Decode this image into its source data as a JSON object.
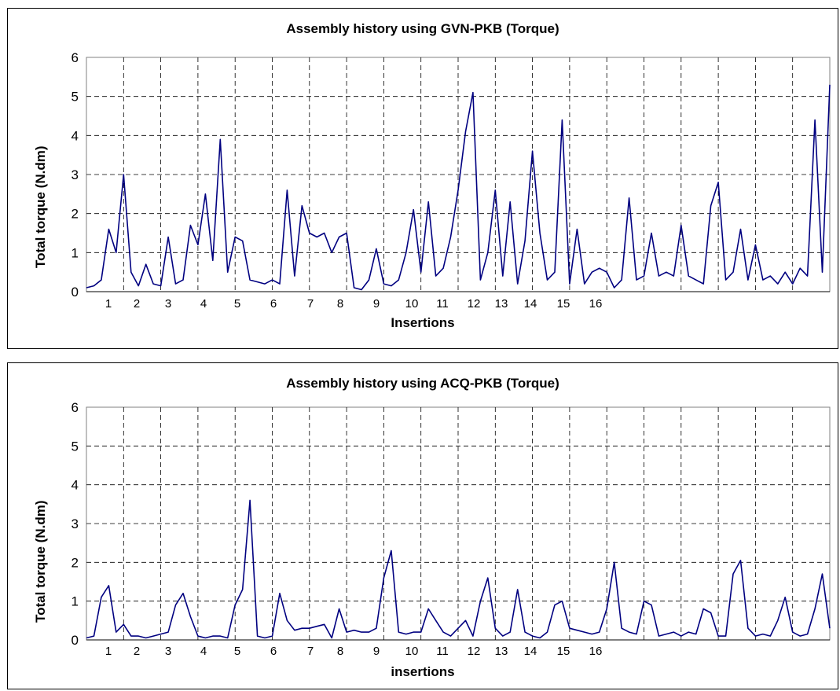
{
  "chart_data": [
    {
      "type": "line",
      "title": "Assembly history using GVN-PKB (Torque)",
      "xlabel": "Insertions",
      "ylabel": "Total torque (N.dm)",
      "ylim": [
        0,
        6
      ],
      "yticks": [
        "0",
        "1",
        "2",
        "3",
        "4",
        "5",
        "6"
      ],
      "grid": true,
      "line_color": "#000080",
      "insertion_labels": [
        "1",
        "2",
        "3",
        "4",
        "5",
        "6",
        "7",
        "8",
        "9",
        "10",
        "11",
        "12",
        "13",
        "14",
        "15",
        "16"
      ],
      "series": [
        {
          "x": [
            0,
            1,
            2,
            3,
            4,
            5,
            6,
            7,
            8,
            9,
            10,
            11,
            12,
            13,
            14,
            15,
            16,
            17,
            18,
            19,
            20,
            21,
            22,
            23,
            24,
            25,
            26,
            27,
            28,
            29,
            30,
            31,
            32,
            33,
            34,
            35,
            36,
            37,
            38,
            39,
            40,
            41,
            42,
            43,
            44,
            45,
            46,
            47,
            48,
            49,
            50,
            51,
            52,
            53,
            54,
            55,
            56,
            57,
            58,
            59,
            60,
            61,
            62,
            63,
            64,
            65,
            66,
            67,
            68,
            69,
            70,
            71,
            72,
            73,
            74,
            75,
            76,
            77,
            78,
            79,
            80,
            81,
            82,
            83,
            84,
            85,
            86,
            87,
            88,
            89,
            90,
            91,
            92,
            93,
            94,
            95,
            96,
            97,
            98,
            99,
            100
          ],
          "y": [
            0.1,
            0.15,
            0.3,
            1.6,
            1.0,
            3.0,
            0.5,
            0.15,
            0.7,
            0.2,
            0.15,
            1.4,
            0.2,
            0.3,
            1.7,
            1.2,
            2.5,
            0.8,
            3.9,
            0.5,
            1.4,
            1.3,
            0.3,
            0.25,
            0.2,
            0.3,
            0.2,
            2.6,
            0.4,
            2.2,
            1.5,
            1.4,
            1.5,
            1.0,
            1.4,
            1.5,
            0.1,
            0.05,
            0.3,
            1.1,
            0.2,
            0.15,
            0.3,
            1.0,
            2.1,
            0.5,
            2.3,
            0.4,
            0.6,
            1.4,
            2.6,
            4.1,
            5.1,
            0.3,
            1.0,
            2.6,
            0.4,
            2.3,
            0.2,
            1.3,
            3.6,
            1.5,
            0.3,
            0.5,
            4.4,
            0.2,
            1.6,
            0.2,
            0.5,
            0.6,
            0.5,
            0.1,
            0.3,
            2.4,
            0.3,
            0.4,
            1.5,
            0.4,
            0.5,
            0.4,
            1.7,
            0.4,
            0.3,
            0.2,
            2.2,
            2.8,
            0.3,
            0.5,
            1.6,
            0.3,
            1.2,
            0.3,
            0.4,
            0.2,
            0.5,
            0.2,
            0.6,
            0.4,
            4.4,
            0.5,
            5.3
          ]
        }
      ]
    },
    {
      "type": "line",
      "title": "Assembly history using ACQ-PKB (Torque)",
      "xlabel": "insertions",
      "ylabel": "Total torque (N.dm)",
      "ylim": [
        0,
        6
      ],
      "yticks": [
        "0",
        "1",
        "2",
        "3",
        "4",
        "5",
        "6"
      ],
      "grid": true,
      "line_color": "#000080",
      "insertion_labels": [
        "1",
        "2",
        "3",
        "4",
        "5",
        "6",
        "7",
        "8",
        "9",
        "10",
        "11",
        "12",
        "13",
        "14",
        "15",
        "16"
      ],
      "series": [
        {
          "x": [
            0,
            1,
            2,
            3,
            4,
            5,
            6,
            7,
            8,
            9,
            10,
            11,
            12,
            13,
            14,
            15,
            16,
            17,
            18,
            19,
            20,
            21,
            22,
            23,
            24,
            25,
            26,
            27,
            28,
            29,
            30,
            31,
            32,
            33,
            34,
            35,
            36,
            37,
            38,
            39,
            40,
            41,
            42,
            43,
            44,
            45,
            46,
            47,
            48,
            49,
            50,
            51,
            52,
            53,
            54,
            55,
            56,
            57,
            58,
            59,
            60,
            61,
            62,
            63,
            64,
            65,
            66,
            67,
            68,
            69,
            70,
            71,
            72,
            73,
            74,
            75,
            76,
            77,
            78,
            79,
            80,
            81,
            82,
            83,
            84,
            85,
            86,
            87,
            88,
            89,
            90,
            91,
            92,
            93,
            94,
            95,
            96,
            97,
            98,
            99,
            100
          ],
          "y": [
            0.05,
            0.1,
            1.1,
            1.4,
            0.2,
            0.4,
            0.1,
            0.1,
            0.05,
            0.1,
            0.15,
            0.2,
            0.9,
            1.2,
            0.6,
            0.1,
            0.05,
            0.1,
            0.1,
            0.05,
            0.9,
            1.3,
            3.6,
            0.1,
            0.05,
            0.1,
            1.2,
            0.5,
            0.25,
            0.3,
            0.3,
            0.35,
            0.4,
            0.05,
            0.8,
            0.2,
            0.25,
            0.2,
            0.2,
            0.3,
            1.6,
            2.3,
            0.2,
            0.15,
            0.2,
            0.2,
            0.8,
            0.5,
            0.2,
            0.1,
            0.3,
            0.5,
            0.1,
            1.0,
            1.6,
            0.3,
            0.1,
            0.2,
            1.3,
            0.2,
            0.1,
            0.05,
            0.2,
            0.9,
            1.0,
            0.3,
            0.25,
            0.2,
            0.15,
            0.2,
            0.8,
            2.0,
            0.3,
            0.2,
            0.15,
            1.0,
            0.9,
            0.1,
            0.15,
            0.2,
            0.1,
            0.2,
            0.15,
            0.8,
            0.7,
            0.1,
            0.1,
            1.7,
            2.05,
            0.3,
            0.1,
            0.15,
            0.1,
            0.5,
            1.1,
            0.2,
            0.1,
            0.15,
            0.8,
            1.7,
            0.3
          ]
        }
      ]
    }
  ]
}
